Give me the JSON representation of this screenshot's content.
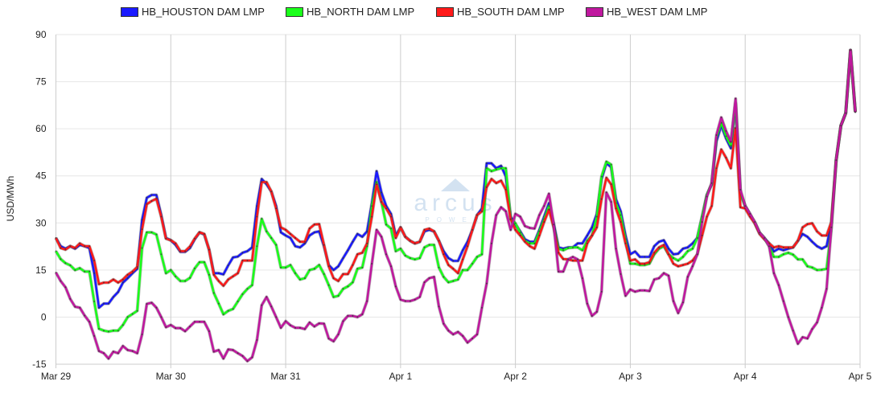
{
  "chart_data": {
    "type": "line",
    "title": "",
    "xlabel": "",
    "ylabel": "USD/MWh",
    "ylim": [
      -15,
      90
    ],
    "yticks": [
      "-15",
      "0",
      "15",
      "30",
      "45",
      "60",
      "75",
      "90"
    ],
    "ytick_values": [
      -15,
      0,
      15,
      30,
      45,
      60,
      75,
      90
    ],
    "xticks": [
      "Mar 29",
      "Mar 30",
      "Mar 31",
      "Apr 1",
      "Apr 2",
      "Apr 3",
      "Apr 4",
      "Apr 5"
    ],
    "x_unit": "hour index from Mar 29 00:00 (hourly)",
    "xlim": [
      0,
      168
    ],
    "grid": true,
    "legend_position": "top-center",
    "watermark": {
      "main": "arcus",
      "sub": "POWER"
    },
    "series": [
      {
        "name": "HB_HOUSTON DAM LMP",
        "color": "#1a1aff",
        "values": [
          25.2,
          22.6,
          21.8,
          22.6,
          21.8,
          23,
          22.6,
          22,
          14,
          3,
          4.3,
          4.3,
          6.4,
          8,
          11,
          12.4,
          14,
          15.4,
          31,
          38,
          38.9,
          38.9,
          32.5,
          25.2,
          24.5,
          23,
          20.8,
          20.8,
          22,
          24.8,
          27,
          26.3,
          21.5,
          14,
          14,
          13.6,
          16.5,
          19,
          19.3,
          20.5,
          21,
          22.2,
          35.4,
          44,
          42.3,
          40,
          35.4,
          27,
          26,
          25.2,
          22.6,
          22.2,
          23.5,
          26,
          27,
          27.3,
          22.6,
          16.6,
          15,
          16.2,
          18.8,
          21.3,
          24,
          26.5,
          25.6,
          27.3,
          36.3,
          46.5,
          39.7,
          35.4,
          32.9,
          26,
          28.6,
          25.6,
          24.3,
          23.5,
          24,
          27.3,
          27.8,
          27.3,
          24.3,
          21,
          18.8,
          17.9,
          17.9,
          21.3,
          24,
          27.8,
          32.5,
          34.6,
          49,
          49,
          47.4,
          48.2,
          44.8,
          32,
          29.5,
          27.3,
          24.8,
          24,
          24,
          27.8,
          32,
          36.3,
          29.9,
          22.2,
          21.8,
          22.2,
          22.2,
          23.5,
          23.5,
          26,
          28.6,
          32.9,
          44,
          49,
          47.8,
          37.6,
          33.7,
          26,
          20,
          20.9,
          19.2,
          19.2,
          19.2,
          22.6,
          24,
          24.5,
          21.8,
          20,
          20.2,
          21.8,
          22.2,
          23.5,
          25.2,
          32,
          38.9,
          42.3,
          56,
          61,
          56.9,
          53.8,
          67.9,
          39.7,
          35.4,
          32.9,
          29.9,
          26.9,
          25.2,
          23.5,
          20.9,
          21.8,
          21.3,
          21.8,
          22.2,
          24.3,
          26.5,
          25.6,
          24,
          22.6,
          21.8,
          22.6,
          29.9,
          50,
          61,
          65,
          85,
          65.3
        ]
      },
      {
        "name": "HB_NORTH DAM LMP",
        "color": "#1aff1a",
        "values": [
          21,
          18.5,
          17.2,
          16.5,
          15,
          15.6,
          14.5,
          14.5,
          5,
          -3.7,
          -4.3,
          -4.6,
          -4.3,
          -4.3,
          -2.5,
          0,
          1,
          2,
          22,
          27,
          27,
          26.3,
          20,
          14,
          15,
          13,
          11.5,
          11.5,
          12.5,
          15.5,
          17.5,
          17.5,
          13.5,
          7.7,
          4.3,
          0.9,
          2,
          2.6,
          5,
          7.3,
          9,
          10.2,
          22.6,
          31.3,
          27.3,
          25.2,
          23,
          15.8,
          15.8,
          16.6,
          14,
          12,
          12.4,
          15,
          15.4,
          16.6,
          13.7,
          10.2,
          6.4,
          6.8,
          9,
          9.8,
          11.1,
          15.4,
          15.8,
          22.6,
          35.4,
          43,
          36.7,
          29.5,
          28.2,
          21,
          21.8,
          19.6,
          18.8,
          18.4,
          18.8,
          22.2,
          23,
          23,
          15.8,
          12.8,
          11.1,
          11.5,
          12,
          15,
          15,
          17,
          19.2,
          20,
          47.4,
          46.5,
          47,
          47.4,
          47.4,
          31.2,
          29.9,
          26.9,
          24.3,
          23.5,
          23.5,
          27.3,
          31.2,
          35.4,
          29,
          21.8,
          21.3,
          22,
          22.2,
          22.2,
          21.3,
          24.3,
          26,
          32,
          44.8,
          49.5,
          48.6,
          36.3,
          32.5,
          24.8,
          17,
          17,
          16.6,
          16.6,
          17,
          20,
          21.8,
          22.6,
          20,
          18.8,
          18,
          19.2,
          21,
          21.8,
          25.2,
          32,
          38.9,
          42.5,
          57.2,
          61.9,
          57.6,
          54.6,
          68.3,
          39.3,
          35.4,
          32.5,
          30.3,
          26.9,
          25.2,
          22.6,
          19.2,
          19.2,
          20,
          20.5,
          19.9,
          18.4,
          18.4,
          16.2,
          15.8,
          15,
          15.1,
          15.4,
          28.2,
          50,
          61,
          65,
          85,
          65.3
        ]
      },
      {
        "name": "HB_SOUTH DAM LMP",
        "color": "#ff1a1a",
        "values": [
          25.2,
          22,
          21.5,
          22.6,
          22,
          23.5,
          22.6,
          22.6,
          18,
          10.5,
          11,
          11,
          12,
          11,
          12,
          13.5,
          14.5,
          16,
          28,
          36,
          37,
          37.7,
          32,
          25,
          24.5,
          23.5,
          21,
          21,
          22.5,
          25,
          27,
          26.5,
          21.5,
          13.5,
          11.5,
          10,
          12,
          13,
          14,
          18,
          18,
          18,
          32,
          43,
          43,
          40,
          34.6,
          28.6,
          27.8,
          26.5,
          25.2,
          24,
          24,
          28.2,
          29.5,
          29.6,
          23,
          16.2,
          12.4,
          11.5,
          13.7,
          13.7,
          16.6,
          20,
          20.5,
          23.5,
          32,
          42.3,
          36.7,
          34.6,
          32,
          25.2,
          28.6,
          25.6,
          24.3,
          23.5,
          24,
          27.8,
          28.2,
          27.3,
          24.3,
          20,
          16.6,
          15.4,
          14,
          18.4,
          22.6,
          27.8,
          32.5,
          33.7,
          41.4,
          44,
          42.7,
          43.5,
          40.6,
          31.2,
          27.8,
          26,
          24,
          22.6,
          21.8,
          26,
          30.3,
          34.2,
          28.6,
          20.5,
          18.5,
          18.4,
          18,
          18,
          18,
          23.5,
          26,
          28.6,
          37.6,
          44.4,
          42.3,
          34.6,
          30.3,
          23.5,
          18,
          18.4,
          17,
          17,
          17.5,
          20.5,
          22.2,
          23,
          20,
          17,
          16.2,
          16.6,
          17,
          18,
          20,
          26,
          32,
          35.4,
          47.4,
          53.4,
          50.8,
          47.4,
          60.2,
          35,
          34.6,
          32,
          29.9,
          26.5,
          24.8,
          23.5,
          22.2,
          22.6,
          22.2,
          22.2,
          22.2,
          24.3,
          28.6,
          29.6,
          29.9,
          27.3,
          26,
          26,
          30.3,
          50,
          61,
          65,
          85,
          65.3
        ]
      },
      {
        "name": "HB_WEST DAM LMP",
        "color": "#c0189f",
        "values": [
          14.2,
          11.5,
          9.5,
          5.8,
          3.3,
          3,
          0.5,
          -1.5,
          -6,
          -10.8,
          -11.5,
          -13.2,
          -11,
          -11.5,
          -9.2,
          -10.5,
          -10.8,
          -11.5,
          -5.5,
          4.2,
          4.6,
          3,
          0,
          -3.2,
          -2.5,
          -3.5,
          -3.5,
          -4.5,
          -3,
          -1.5,
          -1.5,
          -1.5,
          -4.5,
          -11,
          -10.5,
          -13.2,
          -10.3,
          -10.5,
          -11.5,
          -12.4,
          -14,
          -12.8,
          -7.3,
          3.8,
          6.4,
          3.4,
          0,
          -3.4,
          -1.3,
          -2.6,
          -3.4,
          -3.4,
          -3.8,
          -1.7,
          -3,
          -2,
          -2.1,
          -6.8,
          -7.7,
          -5.5,
          -1.3,
          0.4,
          0.4,
          0,
          0.9,
          5.1,
          17,
          27.8,
          25.6,
          20,
          16.2,
          9.8,
          5.6,
          5.1,
          5.1,
          5.6,
          6.4,
          11.1,
          12.4,
          12.8,
          3.4,
          -2.1,
          -4.3,
          -5.5,
          -4.7,
          -6,
          -8.1,
          -6.8,
          -5.5,
          3,
          10.7,
          23.5,
          32.5,
          35,
          33.7,
          27.8,
          32.9,
          32,
          29,
          28.4,
          28.2,
          32.5,
          35.4,
          39.3,
          29.5,
          14.5,
          14.5,
          18.4,
          19.2,
          18.4,
          12.4,
          4.3,
          0.4,
          1.7,
          8.1,
          39.7,
          36.7,
          21.8,
          13.7,
          6.8,
          8.8,
          8.1,
          8.5,
          8.5,
          8.3,
          12,
          12.4,
          14,
          13.2,
          5.1,
          1.3,
          4.7,
          12.8,
          16.2,
          20,
          30.3,
          38.4,
          42.7,
          58,
          63.6,
          59.3,
          55.9,
          69.6,
          40.6,
          35.4,
          32.9,
          30.3,
          26.9,
          25.2,
          22.6,
          14,
          10.2,
          5.1,
          0,
          -4.3,
          -8.5,
          -6.4,
          -6.8,
          -3.8,
          -1.7,
          3,
          9,
          28.6,
          50,
          61,
          65,
          85,
          65.3
        ]
      }
    ]
  }
}
